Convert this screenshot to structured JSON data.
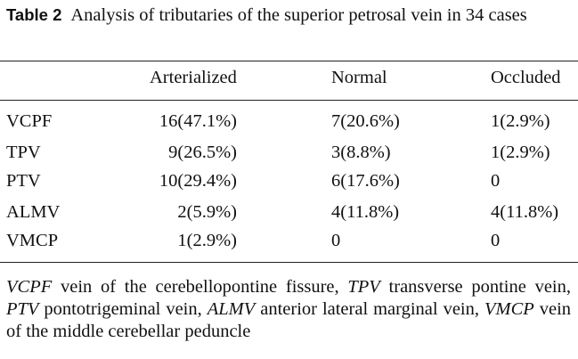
{
  "caption": {
    "label": "Table 2",
    "text": "Analysis of tributaries of the superior petrosal vein in 34 cases"
  },
  "table": {
    "headers": [
      "",
      "Arterialized",
      "Normal",
      "Occluded"
    ],
    "rows": [
      {
        "name": "VCPF",
        "arterialized": "16(47.1%)",
        "normal": "7(20.6%)",
        "occluded": "1(2.9%)"
      },
      {
        "name": "TPV",
        "arterialized": "9(26.5%)",
        "normal": "3(8.8%)",
        "occluded": "1(2.9%)"
      },
      {
        "name": "PTV",
        "arterialized": "10(29.4%)",
        "normal": "6(17.6%)",
        "occluded": "0"
      },
      {
        "name": "ALMV",
        "arterialized": "2(5.9%)",
        "normal": "4(11.8%)",
        "occluded": "4(11.8%)"
      },
      {
        "name": "VMCP",
        "arterialized": "1(2.9%)",
        "normal": "0",
        "occluded": "0"
      }
    ]
  },
  "footnote": [
    {
      "abbr": "VCPF",
      "text": "vein of the cerebellopontine fissure,"
    },
    {
      "abbr": "TPV",
      "text": "transverse pontine vein,"
    },
    {
      "abbr": "PTV",
      "text": "pontotrigeminal vein,"
    },
    {
      "abbr": "ALMV",
      "text": "anterior lateral marginal vein,"
    },
    {
      "abbr": "VMCP",
      "text": "vein of the middle cerebellar peduncle"
    }
  ]
}
